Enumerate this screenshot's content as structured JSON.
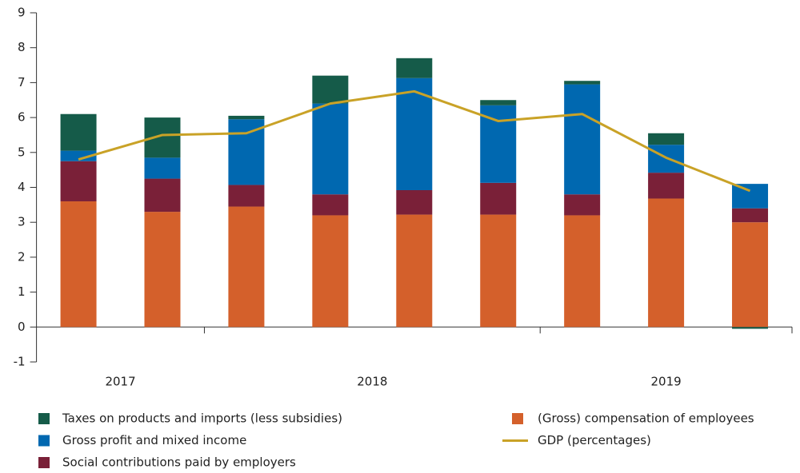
{
  "chart_data": {
    "type": "stacked_bar_line",
    "categories": [
      null,
      null,
      null,
      null,
      null,
      null,
      null,
      null,
      null
    ],
    "year_labels": [
      "2017",
      "2018",
      "2019"
    ],
    "series": [
      {
        "name": "(Gross) compensation of employees",
        "color": "#d4602b",
        "values": [
          3.6,
          3.3,
          3.45,
          3.2,
          3.22,
          3.22,
          3.2,
          3.68,
          3.0
        ]
      },
      {
        "name": "Social contributions paid by employers",
        "color": "#7a2038",
        "values": [
          1.15,
          0.95,
          0.62,
          0.6,
          0.7,
          0.91,
          0.6,
          0.74,
          0.4
        ]
      },
      {
        "name": "Gross profit and mixed income",
        "color": "#0068b0",
        "values": [
          0.3,
          0.6,
          1.88,
          2.6,
          3.21,
          2.22,
          3.15,
          0.8,
          0.7
        ]
      },
      {
        "name": "Taxes on products and imports (less subsidies)",
        "color": "#155b49",
        "values": [
          1.05,
          1.15,
          0.1,
          0.8,
          0.57,
          0.15,
          0.1,
          0.33,
          -0.05
        ]
      }
    ],
    "line": {
      "name": "GDP (percentages)",
      "color": "#c9a227",
      "values": [
        4.8,
        5.5,
        5.55,
        6.4,
        6.75,
        5.9,
        6.1,
        4.85,
        3.9
      ]
    },
    "ylim": [
      -1,
      9
    ],
    "yticks": [
      -1,
      0,
      1,
      2,
      3,
      4,
      5,
      6,
      7,
      8,
      9
    ]
  }
}
